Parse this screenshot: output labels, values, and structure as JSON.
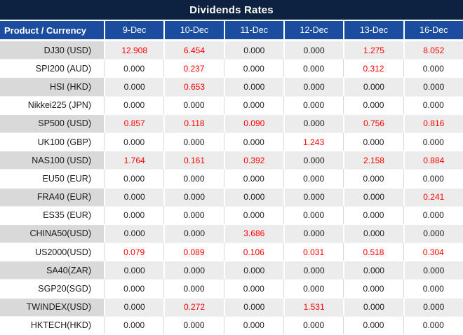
{
  "colors": {
    "title_bg": "#0c2240",
    "header_bg": "#1b4d9e",
    "shaded_product": "#d9d9d9",
    "shaded_data": "#ececec",
    "value_red": "#ff0000",
    "text_dark": "#1a1a1a"
  },
  "chart_data": {
    "type": "table",
    "title": "Dividends Rates",
    "product_header": "Product / Currency",
    "date_columns": [
      "9-Dec",
      "10-Dec",
      "11-Dec",
      "12-Dec",
      "13-Dec",
      "16-Dec"
    ],
    "value_color_rule": "non-zero values rendered in red, zero values in black",
    "rows": [
      {
        "product": "DJ30 (USD)",
        "values": [
          "12.908",
          "6.454",
          "0.000",
          "0.000",
          "1.275",
          "8.052"
        ]
      },
      {
        "product": "SPI200 (AUD)",
        "values": [
          "0.000",
          "0.237",
          "0.000",
          "0.000",
          "0.312",
          "0.000"
        ]
      },
      {
        "product": "HSI (HKD)",
        "values": [
          "0.000",
          "0.653",
          "0.000",
          "0.000",
          "0.000",
          "0.000"
        ]
      },
      {
        "product": "Nikkei225 (JPN)",
        "values": [
          "0.000",
          "0.000",
          "0.000",
          "0.000",
          "0.000",
          "0.000"
        ]
      },
      {
        "product": "SP500 (USD)",
        "values": [
          "0.857",
          "0.118",
          "0.090",
          "0.000",
          "0.756",
          "0.816"
        ]
      },
      {
        "product": "UK100 (GBP)",
        "values": [
          "0.000",
          "0.000",
          "0.000",
          "1.243",
          "0.000",
          "0.000"
        ]
      },
      {
        "product": "NAS100 (USD)",
        "values": [
          "1.764",
          "0.161",
          "0.392",
          "0.000",
          "2.158",
          "0.884"
        ]
      },
      {
        "product": "EU50 (EUR)",
        "values": [
          "0.000",
          "0.000",
          "0.000",
          "0.000",
          "0.000",
          "0.000"
        ]
      },
      {
        "product": "FRA40 (EUR)",
        "values": [
          "0.000",
          "0.000",
          "0.000",
          "0.000",
          "0.000",
          "0.241"
        ]
      },
      {
        "product": "ES35 (EUR)",
        "values": [
          "0.000",
          "0.000",
          "0.000",
          "0.000",
          "0.000",
          "0.000"
        ]
      },
      {
        "product": "CHINA50(USD)",
        "values": [
          "0.000",
          "0.000",
          "3.686",
          "0.000",
          "0.000",
          "0.000"
        ]
      },
      {
        "product": "US2000(USD)",
        "values": [
          "0.079",
          "0.089",
          "0.106",
          "0.031",
          "0.518",
          "0.304"
        ]
      },
      {
        "product": "SA40(ZAR)",
        "values": [
          "0.000",
          "0.000",
          "0.000",
          "0.000",
          "0.000",
          "0.000"
        ]
      },
      {
        "product": "SGP20(SGD)",
        "values": [
          "0.000",
          "0.000",
          "0.000",
          "0.000",
          "0.000",
          "0.000"
        ]
      },
      {
        "product": "TWINDEX(USD)",
        "values": [
          "0.000",
          "0.272",
          "0.000",
          "1.531",
          "0.000",
          "0.000"
        ]
      },
      {
        "product": "HKTECH(HKD)",
        "values": [
          "0.000",
          "0.000",
          "0.000",
          "0.000",
          "0.000",
          "0.000"
        ]
      }
    ]
  }
}
